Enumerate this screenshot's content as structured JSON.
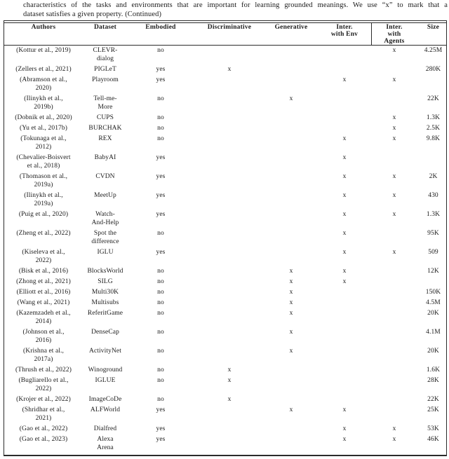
{
  "caption": {
    "line1": "characteristics of the tasks and environments that are important for learning grounded meanings. We use “x” to mark that a",
    "line2": "dataset satisfies a given property. (Continued)"
  },
  "table": {
    "col_keys": [
      "author",
      "dataset",
      "embodied",
      "discriminative",
      "generative",
      "inter_env",
      "inter_agents",
      "size"
    ],
    "headers": [
      "Authors",
      "Dataset",
      "Embodied",
      "Discriminative",
      "Generative",
      "Inter.\nwith Env",
      "Inter.\nwith\nAgents",
      "Size"
    ],
    "rows": [
      {
        "author": "(Kottur et al., 2019)",
        "dataset": "CLEVR-\ndialog",
        "embodied": "no",
        "discriminative": "",
        "generative": "",
        "inter_env": "",
        "inter_agents": "x",
        "size": "4.25M"
      },
      {
        "author": "(Zellers et al., 2021)",
        "dataset": "PIGLeT",
        "embodied": "yes",
        "discriminative": "x",
        "generative": "",
        "inter_env": "",
        "inter_agents": "",
        "size": "280K"
      },
      {
        "author": "(Abramson et al.,\n2020)",
        "dataset": "Playroom",
        "embodied": "yes",
        "discriminative": "",
        "generative": "",
        "inter_env": "x",
        "inter_agents": "x",
        "size": ""
      },
      {
        "author": "(Ilinykh et al.,\n2019b)",
        "dataset": "Tell-me-\nMore",
        "embodied": "no",
        "discriminative": "",
        "generative": "x",
        "inter_env": "",
        "inter_agents": "",
        "size": "22K"
      },
      {
        "author": "(Dobnik et al., 2020)",
        "dataset": "CUPS",
        "embodied": "no",
        "discriminative": "",
        "generative": "",
        "inter_env": "",
        "inter_agents": "x",
        "size": "1.3K"
      },
      {
        "author": "(Yu et al., 2017b)",
        "dataset": "BURCHAK",
        "embodied": "no",
        "discriminative": "",
        "generative": "",
        "inter_env": "",
        "inter_agents": "x",
        "size": "2.5K"
      },
      {
        "author": "(Tokunaga et al.,\n2012)",
        "dataset": "REX",
        "embodied": "no",
        "discriminative": "",
        "generative": "",
        "inter_env": "x",
        "inter_agents": "x",
        "size": "9.8K"
      },
      {
        "author": "(Chevalier-Boisvert\net al., 2018)",
        "dataset": "BabyAI",
        "embodied": "yes",
        "discriminative": "",
        "generative": "",
        "inter_env": "x",
        "inter_agents": "",
        "size": ""
      },
      {
        "author": "(Thomason et al.,\n2019a)",
        "dataset": "CVDN",
        "embodied": "yes",
        "discriminative": "",
        "generative": "",
        "inter_env": "x",
        "inter_agents": "x",
        "size": "2K"
      },
      {
        "author": "(Ilinykh et al.,\n2019a)",
        "dataset": "MeetUp",
        "embodied": "yes",
        "discriminative": "",
        "generative": "",
        "inter_env": "x",
        "inter_agents": "x",
        "size": "430"
      },
      {
        "author": "(Puig et al., 2020)",
        "dataset": "Watch-\nAnd-Help",
        "embodied": "yes",
        "discriminative": "",
        "generative": "",
        "inter_env": "x",
        "inter_agents": "x",
        "size": "1.3K"
      },
      {
        "author": "(Zheng et al., 2022)",
        "dataset": "Spot the\ndifference",
        "embodied": "no",
        "discriminative": "",
        "generative": "",
        "inter_env": "x",
        "inter_agents": "",
        "size": "95K"
      },
      {
        "author": "(Kiseleva et al.,\n2022)",
        "dataset": "IGLU",
        "embodied": "yes",
        "discriminative": "",
        "generative": "",
        "inter_env": "x",
        "inter_agents": "x",
        "size": "509"
      },
      {
        "author": "(Bisk et al., 2016)",
        "dataset": "BlocksWorld",
        "embodied": "no",
        "discriminative": "",
        "generative": "x",
        "inter_env": "x",
        "inter_agents": "",
        "size": "12K"
      },
      {
        "author": "(Zhong et al., 2021)",
        "dataset": "SILG",
        "embodied": "no",
        "discriminative": "",
        "generative": "x",
        "inter_env": "x",
        "inter_agents": "",
        "size": ""
      },
      {
        "author": "(Elliott et al., 2016)",
        "dataset": "Multi30K",
        "embodied": "no",
        "discriminative": "",
        "generative": "x",
        "inter_env": "",
        "inter_agents": "",
        "size": "150K"
      },
      {
        "author": "(Wang et al., 2021)",
        "dataset": "Multisubs",
        "embodied": "no",
        "discriminative": "",
        "generative": "x",
        "inter_env": "",
        "inter_agents": "",
        "size": "4.5M"
      },
      {
        "author": "(Kazemzadeh et al.,\n2014)",
        "dataset": "ReferitGame",
        "embodied": "no",
        "discriminative": "",
        "generative": "x",
        "inter_env": "",
        "inter_agents": "",
        "size": "20K"
      },
      {
        "author": "(Johnson et al.,\n2016)",
        "dataset": "DenseCap",
        "embodied": "no",
        "discriminative": "",
        "generative": "x",
        "inter_env": "",
        "inter_agents": "",
        "size": "4.1M"
      },
      {
        "author": "(Krishna et al.,\n2017a)",
        "dataset": "ActivityNet",
        "embodied": "no",
        "discriminative": "",
        "generative": "x",
        "inter_env": "",
        "inter_agents": "",
        "size": "20K"
      },
      {
        "author": "(Thrush et al., 2022)",
        "dataset": "Winoground",
        "embodied": "no",
        "discriminative": "x",
        "generative": "",
        "inter_env": "",
        "inter_agents": "",
        "size": "1.6K"
      },
      {
        "author": "(Bugliarello et al.,\n2022)",
        "dataset": "IGLUE",
        "embodied": "no",
        "discriminative": "x",
        "generative": "",
        "inter_env": "",
        "inter_agents": "",
        "size": "28K"
      },
      {
        "author": "(Krojer et al., 2022)",
        "dataset": "ImageCoDe",
        "embodied": "no",
        "discriminative": "x",
        "generative": "",
        "inter_env": "",
        "inter_agents": "",
        "size": "22K"
      },
      {
        "author": "(Shridhar et al.,\n2021)",
        "dataset": "ALFWorld",
        "embodied": "yes",
        "discriminative": "",
        "generative": "x",
        "inter_env": "x",
        "inter_agents": "",
        "size": "25K"
      },
      {
        "author": "(Gao et al., 2022)",
        "dataset": "Dialfred",
        "embodied": "yes",
        "discriminative": "",
        "generative": "",
        "inter_env": "x",
        "inter_agents": "x",
        "size": "53K"
      },
      {
        "author": "(Gao et al., 2023)",
        "dataset": "Alexa\nArena",
        "embodied": "yes",
        "discriminative": "",
        "generative": "",
        "inter_env": "x",
        "inter_agents": "x",
        "size": "46K"
      }
    ]
  },
  "colors": {
    "text": "#1b1b1b",
    "rule": "#2b2b2b",
    "background": "#ffffff"
  }
}
